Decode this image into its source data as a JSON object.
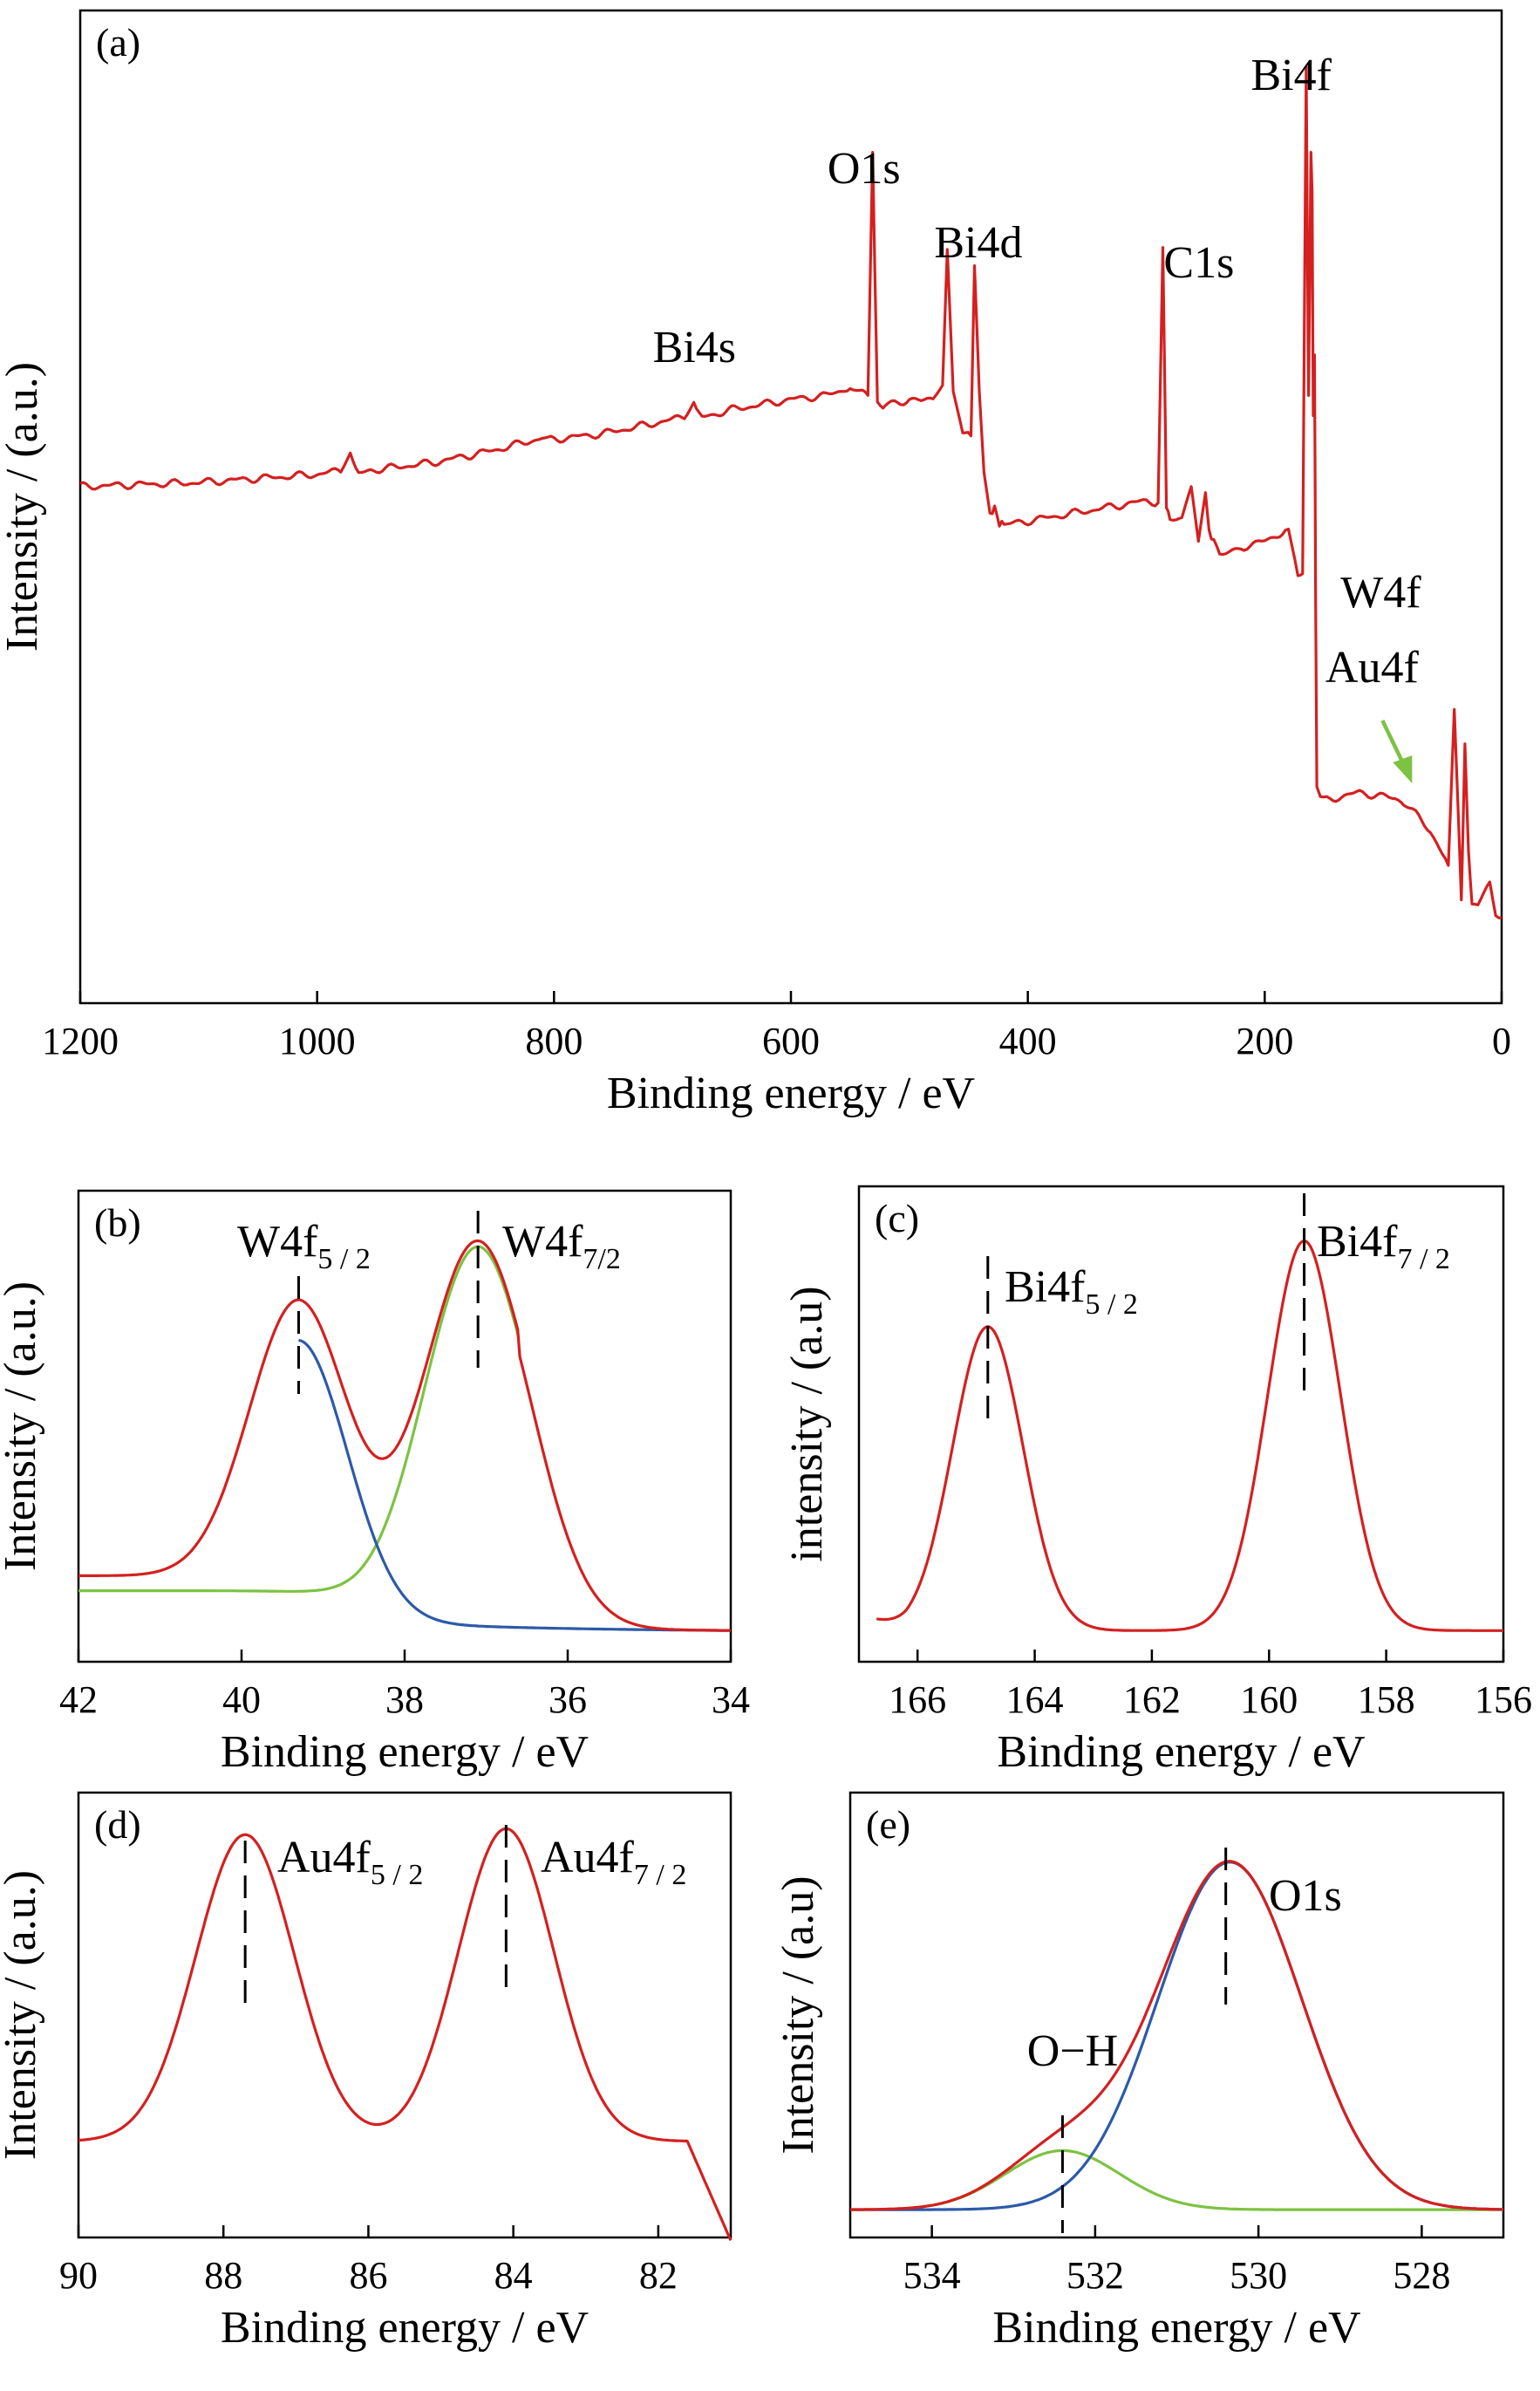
{
  "chart_data": [
    {
      "panel": "(a)",
      "type": "line",
      "xlabel": "Binding energy / eV",
      "ylabel": "Intensity / (a.u.)",
      "xlim": [
        1200,
        0
      ],
      "x_reversed": true,
      "xticks": [
        1200,
        1000,
        800,
        600,
        400,
        200,
        0
      ],
      "y_ticks_shown": false,
      "series": [
        {
          "color": "#d42020",
          "x": [
            1200,
            1150,
            1100,
            1050,
            1000,
            980,
            972,
            965,
            955,
            900,
            850,
            810,
            805,
            760,
            700,
            690,
            682,
            675,
            650,
            600,
            570,
            550,
            542,
            535,
            531,
            527,
            520,
            500,
            490,
            480,
            472,
            468,
            463,
            455,
            448,
            445,
            441,
            437,
            432,
            428,
            424,
            420,
            400,
            360,
            320,
            300,
            290,
            286,
            283,
            280,
            270,
            262,
            256,
            250,
            247,
            243,
            238,
            220,
            200,
            180,
            172,
            168,
            165,
            163,
            161,
            160,
            159,
            158,
            157,
            156,
            150,
            120,
            90,
            85,
            80,
            60,
            45,
            40,
            37,
            34,
            31,
            28,
            25,
            20,
            10,
            5,
            0
          ],
          "y": [
            0.55,
            0.56,
            0.57,
            0.59,
            0.61,
            0.63,
            0.71,
            0.61,
            0.63,
            0.67,
            0.73,
            0.79,
            0.78,
            0.81,
            0.88,
            0.9,
            0.96,
            0.89,
            0.93,
            0.98,
            1.0,
            1.04,
            1.03,
            1.0,
            2.2,
            0.95,
            0.95,
            0.98,
            0.97,
            0.99,
            1.05,
            1.72,
            1.02,
            0.82,
            0.8,
            1.64,
            1.02,
            0.62,
            0.42,
            0.44,
            0.37,
            0.36,
            0.38,
            0.42,
            0.46,
            0.48,
            0.47,
            1.73,
            0.46,
            0.38,
            0.4,
            0.55,
            0.28,
            0.52,
            0.34,
            0.27,
            0.22,
            0.25,
            0.28,
            0.34,
            0.12,
            0.12,
            2.62,
            1.0,
            2.2,
            2.0,
            0.9,
            1.2,
            0.0,
            -0.95,
            -1.0,
            -0.96,
            -0.99,
            -1.0,
            -1.02,
            -1.15,
            -1.32,
            -0.55,
            -1.0,
            -1.49,
            -0.72,
            -1.25,
            -1.52,
            -1.52,
            -1.4,
            -1.55,
            -1.58
          ]
        }
      ],
      "annotations": [
        {
          "text": "Bi4s",
          "x": 680
        },
        {
          "text": "O1s",
          "x": 531
        },
        {
          "text": "Bi4d",
          "x": 455
        },
        {
          "text": "C1s",
          "x": 285
        },
        {
          "text": "Bi4f",
          "x": 160
        },
        {
          "text": "W4f",
          "x": 80
        },
        {
          "text": "Au4f",
          "x": 80,
          "arrow_color": "#7dc242"
        }
      ]
    },
    {
      "panel": "(b)",
      "type": "line",
      "xlabel": "Binding energy / eV",
      "ylabel": "Intensity / (a.u.)",
      "xlim": [
        42,
        34
      ],
      "x_reversed": true,
      "xticks": [
        42,
        40,
        38,
        36,
        34
      ],
      "y_ticks_shown": false,
      "peaks": [
        {
          "label": "W4f",
          "sub": "5 / 2",
          "x": 39.3
        },
        {
          "label": "W4f",
          "sub": "7/2",
          "x": 37.1
        }
      ],
      "series": [
        {
          "name": "envelope",
          "color": "#d42020"
        },
        {
          "name": "W4f5/2 component",
          "color": "#2c5aa8"
        },
        {
          "name": "W4f7/2 component",
          "color": "#7dc242"
        }
      ]
    },
    {
      "panel": "(c)",
      "type": "line",
      "xlabel": "Binding energy / eV",
      "ylabel": "intensity / (a.u)",
      "xlim": [
        167,
        156
      ],
      "x_reversed": true,
      "xticks": [
        166,
        164,
        162,
        160,
        158,
        156
      ],
      "y_ticks_shown": false,
      "peaks": [
        {
          "label": "Bi4f",
          "sub": "5 / 2",
          "x": 164.8
        },
        {
          "label": "Bi4f",
          "sub": "7 / 2",
          "x": 159.4
        }
      ],
      "series": [
        {
          "name": "envelope",
          "color": "#d42020"
        }
      ]
    },
    {
      "panel": "(d)",
      "type": "line",
      "xlabel": "Binding energy / eV",
      "ylabel": "Intensity / (a.u.)",
      "xlim": [
        90,
        81
      ],
      "x_reversed": true,
      "xticks": [
        90,
        88,
        86,
        84,
        82
      ],
      "y_ticks_shown": false,
      "peaks": [
        {
          "label": "Au4f",
          "sub": "5 / 2",
          "x": 87.7
        },
        {
          "label": "Au4f",
          "sub": "7 / 2",
          "x": 84.1
        }
      ],
      "series": [
        {
          "name": "envelope",
          "color": "#d42020"
        }
      ]
    },
    {
      "panel": "(e)",
      "type": "line",
      "xlabel": "Binding energy / eV",
      "ylabel": "Intensity / (a.u)",
      "xlim": [
        535,
        527
      ],
      "x_reversed": true,
      "xticks": [
        534,
        532,
        530,
        528
      ],
      "y_ticks_shown": false,
      "peaks": [
        {
          "label": "O1s",
          "sub": "",
          "x": 530.4
        },
        {
          "label": "O−H",
          "sub": "",
          "x": 532.4
        }
      ],
      "series": [
        {
          "name": "envelope",
          "color": "#d42020"
        },
        {
          "name": "O1s component",
          "color": "#2c5aa8"
        },
        {
          "name": "O−H component",
          "color": "#7dc242"
        }
      ]
    }
  ]
}
